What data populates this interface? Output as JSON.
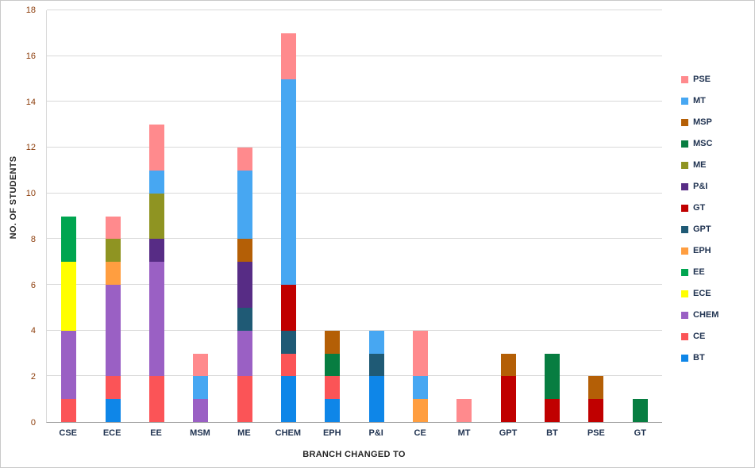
{
  "chart_data": {
    "type": "bar",
    "stacked": true,
    "title": "",
    "xlabel": "BRANCH CHANGED TO",
    "ylabel": "NO. OF STUDENTS",
    "ylim": [
      0,
      18
    ],
    "ytick_step": 2,
    "grid": true,
    "legend_position": "right",
    "legend_order": "reversed-of-stack",
    "categories": [
      "CSE",
      "ECE",
      "EE",
      "MSM",
      "ME",
      "CHEM",
      "EPH",
      "P&I",
      "CE",
      "MT",
      "GPT",
      "BT",
      "PSE",
      "GT"
    ],
    "series": [
      {
        "name": "BT",
        "color": "#0e86e8",
        "values": [
          0,
          1,
          0,
          0,
          0,
          2,
          1,
          2,
          0,
          0,
          0,
          0,
          0,
          0
        ]
      },
      {
        "name": "CE",
        "color": "#fb5457",
        "values": [
          1,
          1,
          2,
          0,
          2,
          1,
          1,
          0,
          0,
          0,
          0,
          0,
          0,
          0
        ]
      },
      {
        "name": "CHEM",
        "color": "#9a60c4",
        "values": [
          3,
          4,
          5,
          1,
          2,
          0,
          0,
          0,
          0,
          0,
          0,
          0,
          0,
          0
        ]
      },
      {
        "name": "ECE",
        "color": "#ffff00",
        "values": [
          3,
          0,
          0,
          0,
          0,
          0,
          0,
          0,
          0,
          0,
          0,
          0,
          0,
          0
        ]
      },
      {
        "name": "EE",
        "color": "#00a550",
        "values": [
          2,
          0,
          0,
          0,
          0,
          0,
          0,
          0,
          0,
          0,
          0,
          0,
          0,
          0
        ]
      },
      {
        "name": "EPH",
        "color": "#ff9e40",
        "values": [
          0,
          1,
          0,
          0,
          0,
          0,
          0,
          0,
          1,
          0,
          0,
          0,
          0,
          0
        ]
      },
      {
        "name": "GPT",
        "color": "#1f5a75",
        "values": [
          0,
          0,
          0,
          0,
          1,
          1,
          0,
          1,
          0,
          0,
          0,
          0,
          0,
          0
        ]
      },
      {
        "name": "GT",
        "color": "#c00000",
        "values": [
          0,
          0,
          0,
          0,
          0,
          2,
          0,
          0,
          0,
          0,
          2,
          1,
          1,
          0
        ]
      },
      {
        "name": "P&I",
        "color": "#572c85",
        "values": [
          0,
          0,
          1,
          0,
          2,
          0,
          0,
          0,
          0,
          0,
          0,
          0,
          0,
          0
        ]
      },
      {
        "name": "ME",
        "color": "#8f9422",
        "values": [
          0,
          1,
          2,
          0,
          0,
          0,
          0,
          0,
          0,
          0,
          0,
          0,
          0,
          0
        ]
      },
      {
        "name": "MSC",
        "color": "#077d41",
        "values": [
          0,
          0,
          0,
          0,
          0,
          0,
          1,
          0,
          0,
          0,
          0,
          2,
          0,
          1
        ]
      },
      {
        "name": "MSP",
        "color": "#b45f06",
        "values": [
          0,
          0,
          0,
          0,
          1,
          0,
          1,
          0,
          0,
          0,
          1,
          0,
          1,
          0
        ]
      },
      {
        "name": "MT",
        "color": "#47a7f2",
        "values": [
          0,
          0,
          1,
          1,
          3,
          9,
          0,
          1,
          1,
          0,
          0,
          0,
          0,
          0
        ]
      },
      {
        "name": "PSE",
        "color": "#ff8a8d",
        "values": [
          0,
          1,
          2,
          1,
          1,
          2,
          0,
          0,
          2,
          1,
          0,
          0,
          0,
          0
        ]
      }
    ]
  }
}
